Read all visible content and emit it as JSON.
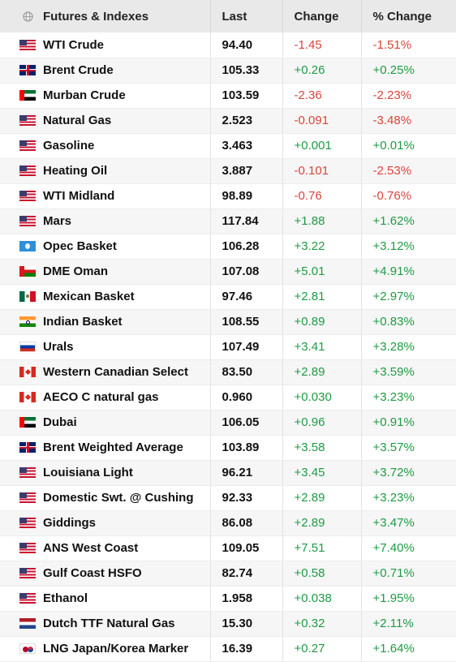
{
  "header": {
    "globe_icon": "globe-icon",
    "col_name": "Futures & Indexes",
    "col_last": "Last",
    "col_change": "Change",
    "col_pct": "% Change"
  },
  "colors": {
    "negative": "#d9443a",
    "positive": "#1e9b45",
    "header_bg": "#e9e9e9"
  },
  "rows": [
    {
      "flag": "us",
      "name": "WTI Crude",
      "last": "94.40",
      "change": "-1.45",
      "pct": "-1.51%"
    },
    {
      "flag": "gb",
      "name": "Brent Crude",
      "last": "105.33",
      "change": "+0.26",
      "pct": "+0.25%"
    },
    {
      "flag": "ae",
      "name": "Murban Crude",
      "last": "103.59",
      "change": "-2.36",
      "pct": "-2.23%"
    },
    {
      "flag": "us",
      "name": "Natural Gas",
      "last": "2.523",
      "change": "-0.091",
      "pct": "-3.48%"
    },
    {
      "flag": "us",
      "name": "Gasoline",
      "last": "3.463",
      "change": "+0.001",
      "pct": "+0.01%"
    },
    {
      "flag": "us",
      "name": "Heating Oil",
      "last": "3.887",
      "change": "-0.101",
      "pct": "-2.53%"
    },
    {
      "flag": "us",
      "name": "WTI Midland",
      "last": "98.89",
      "change": "-0.76",
      "pct": "-0.76%"
    },
    {
      "flag": "us",
      "name": "Mars",
      "last": "117.84",
      "change": "+1.88",
      "pct": "+1.62%"
    },
    {
      "flag": "opec",
      "name": "Opec Basket",
      "last": "106.28",
      "change": "+3.22",
      "pct": "+3.12%"
    },
    {
      "flag": "om",
      "name": "DME Oman",
      "last": "107.08",
      "change": "+5.01",
      "pct": "+4.91%"
    },
    {
      "flag": "mx",
      "name": "Mexican Basket",
      "last": "97.46",
      "change": "+2.81",
      "pct": "+2.97%"
    },
    {
      "flag": "in",
      "name": "Indian Basket",
      "last": "108.55",
      "change": "+0.89",
      "pct": "+0.83%"
    },
    {
      "flag": "ru",
      "name": "Urals",
      "last": "107.49",
      "change": "+3.41",
      "pct": "+3.28%"
    },
    {
      "flag": "ca",
      "name": "Western Canadian Select",
      "last": "83.50",
      "change": "+2.89",
      "pct": "+3.59%"
    },
    {
      "flag": "ca",
      "name": "AECO C natural gas",
      "last": "0.960",
      "change": "+0.030",
      "pct": "+3.23%"
    },
    {
      "flag": "ae",
      "name": "Dubai",
      "last": "106.05",
      "change": "+0.96",
      "pct": "+0.91%"
    },
    {
      "flag": "gb",
      "name": "Brent Weighted Average",
      "last": "103.89",
      "change": "+3.58",
      "pct": "+3.57%"
    },
    {
      "flag": "us",
      "name": "Louisiana Light",
      "last": "96.21",
      "change": "+3.45",
      "pct": "+3.72%"
    },
    {
      "flag": "us",
      "name": "Domestic Swt. @ Cushing",
      "last": "92.33",
      "change": "+2.89",
      "pct": "+3.23%"
    },
    {
      "flag": "us",
      "name": "Giddings",
      "last": "86.08",
      "change": "+2.89",
      "pct": "+3.47%"
    },
    {
      "flag": "us",
      "name": "ANS West Coast",
      "last": "109.05",
      "change": "+7.51",
      "pct": "+7.40%"
    },
    {
      "flag": "us",
      "name": "Gulf Coast HSFO",
      "last": "82.74",
      "change": "+0.58",
      "pct": "+0.71%"
    },
    {
      "flag": "us",
      "name": "Ethanol",
      "last": "1.958",
      "change": "+0.038",
      "pct": "+1.95%"
    },
    {
      "flag": "nl",
      "name": "Dutch TTF Natural Gas",
      "last": "15.30",
      "change": "+0.32",
      "pct": "+2.11%"
    },
    {
      "flag": "jpkr",
      "name": "LNG Japan/Korea Marker",
      "last": "16.39",
      "change": "+0.27",
      "pct": "+1.64%"
    }
  ]
}
